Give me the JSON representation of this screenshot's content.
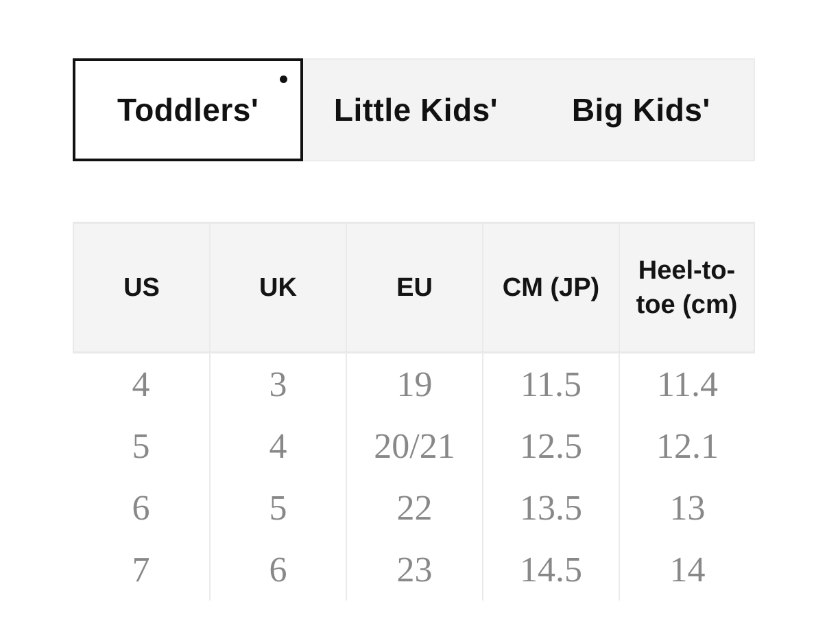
{
  "tabs": {
    "items": [
      {
        "label": "Toddlers'",
        "active": true
      },
      {
        "label": "Little Kids'",
        "active": false
      },
      {
        "label": "Big Kids'",
        "active": false
      }
    ]
  },
  "table": {
    "columns": [
      "US",
      "UK",
      "EU",
      "CM (JP)",
      "Heel-to-toe (cm)"
    ],
    "rows": [
      [
        "4",
        "3",
        "19",
        "11.5",
        "11.4"
      ],
      [
        "5",
        "4",
        "20/21",
        "12.5",
        "12.1"
      ],
      [
        "6",
        "5",
        "22",
        "13.5",
        "13"
      ],
      [
        "7",
        "6",
        "23",
        "14.5",
        "14"
      ]
    ]
  },
  "colors": {
    "accent_black": "#111111",
    "tab_bar_bg": "#f3f3f3",
    "tab_bar_border": "#ebebeb",
    "active_tab_bg": "#ffffff",
    "header_bg": "#f4f4f4",
    "divider": "#e9e9e9",
    "header_text": "#141414",
    "body_text": "#888888"
  }
}
